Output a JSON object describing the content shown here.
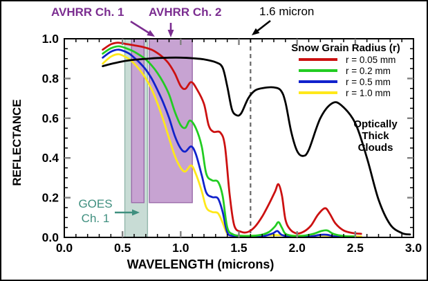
{
  "colors": {
    "red": "#CC1111",
    "green": "#22CC22",
    "blue": "#1122CC",
    "yellow": "#FFE81A",
    "cloud": "#000000",
    "purple_text": "#7B2D90",
    "teal_text": "#3F8F7F",
    "purple_band": "#C7A3D2",
    "purple_band_edge": "#9A6BAA",
    "teal_band": "#C8DCD5",
    "teal_band_edge": "#93B7AC",
    "dashed_line": "#666666",
    "major_tick": "#808080",
    "axis": "#000000"
  },
  "annotations": {
    "avhrr1": "AVHRR Ch. 1",
    "avhrr2": "AVHRR Ch. 2",
    "micron16": "1.6 micron",
    "goes_line1": "GOES",
    "goes_line2": "Ch. 1",
    "clouds_line1": "Optically",
    "clouds_line2": "Thick",
    "clouds_line3": "Clouds"
  },
  "legend": {
    "title": "Snow Grain Radius (r)",
    "items": [
      {
        "label": "r = 0.05 mm",
        "color": "red"
      },
      {
        "label": "r = 0.2 mm",
        "color": "green"
      },
      {
        "label": "r = 0.5 mm",
        "color": "blue"
      },
      {
        "label": "r = 1.0 mm",
        "color": "yellow"
      }
    ]
  },
  "axes": {
    "x_title": "WAVELENGTH (microns)",
    "y_title": "REFLECTANCE"
  },
  "chart_data": {
    "type": "line",
    "title": "",
    "xlabel": "WAVELENGTH (microns)",
    "ylabel": "REFLECTANCE",
    "xlim": [
      0.0,
      3.0
    ],
    "ylim": [
      0.0,
      1.0
    ],
    "x_ticks": {
      "major": [
        0.0,
        0.5,
        1.0,
        1.5,
        2.0,
        2.5,
        3.0
      ],
      "labels": [
        "0.0",
        "0.5",
        "1.0",
        "1.5",
        "2.0",
        "2.5",
        "3.0"
      ],
      "minor_step": 0.1
    },
    "y_ticks": {
      "major": [
        0.0,
        0.2,
        0.4,
        0.6,
        0.8,
        1.0
      ],
      "labels": [
        "0.0",
        "0.2",
        "0.4",
        "0.6",
        "0.8",
        "1.0"
      ],
      "minor_step": 0.05
    },
    "reference_line": {
      "x": 1.6,
      "label": "1.6 micron"
    },
    "bands": [
      {
        "name": "GOES Ch. 1",
        "x": [
          0.52,
          0.715
        ],
        "y": [
          0.0,
          1.0
        ],
        "fill": "teal_band",
        "edge": "teal_band_edge"
      },
      {
        "name": "AVHRR Ch. 1",
        "x": [
          0.578,
          0.685
        ],
        "y": [
          0.175,
          1.0
        ],
        "fill": "purple_band",
        "edge": "purple_band_edge"
      },
      {
        "name": "AVHRR Ch. 2",
        "x": [
          0.73,
          1.1
        ],
        "y": [
          0.175,
          1.0
        ],
        "fill": "purple_band",
        "edge": "purple_band_edge"
      }
    ],
    "series": [
      {
        "name": "r = 1.0 mm",
        "color": "yellow",
        "points": [
          [
            0.33,
            0.875
          ],
          [
            0.4,
            0.91
          ],
          [
            0.47,
            0.922
          ],
          [
            0.55,
            0.9
          ],
          [
            0.6,
            0.875
          ],
          [
            0.65,
            0.842
          ],
          [
            0.7,
            0.8
          ],
          [
            0.75,
            0.746
          ],
          [
            0.8,
            0.675
          ],
          [
            0.85,
            0.592
          ],
          [
            0.9,
            0.5
          ],
          [
            0.95,
            0.41
          ],
          [
            1.0,
            0.35
          ],
          [
            1.04,
            0.332
          ],
          [
            1.09,
            0.362
          ],
          [
            1.13,
            0.32
          ],
          [
            1.18,
            0.235
          ],
          [
            1.22,
            0.15
          ],
          [
            1.27,
            0.128
          ],
          [
            1.32,
            0.122
          ],
          [
            1.36,
            0.075
          ],
          [
            1.4,
            0.018
          ],
          [
            1.45,
            0.01
          ],
          [
            1.6,
            0.008
          ],
          [
            1.8,
            0.012
          ],
          [
            2.0,
            0.008
          ],
          [
            2.2,
            0.01
          ],
          [
            2.4,
            0.006
          ],
          [
            2.55,
            0.005
          ]
        ]
      },
      {
        "name": "r = 0.5 mm",
        "color": "blue",
        "points": [
          [
            0.33,
            0.905
          ],
          [
            0.4,
            0.935
          ],
          [
            0.47,
            0.945
          ],
          [
            0.55,
            0.928
          ],
          [
            0.6,
            0.905
          ],
          [
            0.65,
            0.878
          ],
          [
            0.7,
            0.845
          ],
          [
            0.75,
            0.8
          ],
          [
            0.8,
            0.742
          ],
          [
            0.85,
            0.678
          ],
          [
            0.9,
            0.602
          ],
          [
            0.95,
            0.51
          ],
          [
            1.0,
            0.448
          ],
          [
            1.04,
            0.432
          ],
          [
            1.09,
            0.458
          ],
          [
            1.13,
            0.42
          ],
          [
            1.18,
            0.315
          ],
          [
            1.22,
            0.225
          ],
          [
            1.27,
            0.203
          ],
          [
            1.32,
            0.196
          ],
          [
            1.36,
            0.13
          ],
          [
            1.4,
            0.025
          ],
          [
            1.45,
            0.008
          ],
          [
            1.55,
            0.005
          ],
          [
            1.7,
            0.006
          ],
          [
            1.79,
            0.02
          ],
          [
            1.83,
            0.032
          ],
          [
            1.87,
            0.012
          ],
          [
            1.95,
            0.004
          ],
          [
            2.1,
            0.004
          ],
          [
            2.2,
            0.013
          ],
          [
            2.26,
            0.013
          ],
          [
            2.34,
            0.004
          ],
          [
            2.5,
            0.003
          ]
        ]
      },
      {
        "name": "r = 0.2 mm",
        "color": "green",
        "points": [
          [
            0.33,
            0.925
          ],
          [
            0.4,
            0.952
          ],
          [
            0.47,
            0.962
          ],
          [
            0.55,
            0.948
          ],
          [
            0.6,
            0.935
          ],
          [
            0.65,
            0.917
          ],
          [
            0.7,
            0.896
          ],
          [
            0.75,
            0.866
          ],
          [
            0.8,
            0.828
          ],
          [
            0.85,
            0.78
          ],
          [
            0.9,
            0.72
          ],
          [
            0.95,
            0.632
          ],
          [
            1.0,
            0.565
          ],
          [
            1.04,
            0.552
          ],
          [
            1.08,
            0.588
          ],
          [
            1.13,
            0.55
          ],
          [
            1.18,
            0.46
          ],
          [
            1.22,
            0.32
          ],
          [
            1.27,
            0.287
          ],
          [
            1.32,
            0.28
          ],
          [
            1.36,
            0.21
          ],
          [
            1.4,
            0.05
          ],
          [
            1.45,
            0.015
          ],
          [
            1.52,
            0.008
          ],
          [
            1.62,
            0.008
          ],
          [
            1.7,
            0.014
          ],
          [
            1.76,
            0.028
          ],
          [
            1.81,
            0.055
          ],
          [
            1.84,
            0.077
          ],
          [
            1.87,
            0.048
          ],
          [
            1.9,
            0.018
          ],
          [
            1.96,
            0.008
          ],
          [
            2.05,
            0.008
          ],
          [
            2.14,
            0.018
          ],
          [
            2.21,
            0.032
          ],
          [
            2.26,
            0.035
          ],
          [
            2.31,
            0.018
          ],
          [
            2.4,
            0.007
          ],
          [
            2.5,
            0.005
          ]
        ]
      },
      {
        "name": "r = 0.05 mm",
        "color": "red",
        "points": [
          [
            0.33,
            0.945
          ],
          [
            0.4,
            0.972
          ],
          [
            0.46,
            0.98
          ],
          [
            0.52,
            0.975
          ],
          [
            0.6,
            0.967
          ],
          [
            0.68,
            0.958
          ],
          [
            0.75,
            0.945
          ],
          [
            0.8,
            0.928
          ],
          [
            0.85,
            0.905
          ],
          [
            0.9,
            0.873
          ],
          [
            0.95,
            0.825
          ],
          [
            1.0,
            0.762
          ],
          [
            1.04,
            0.748
          ],
          [
            1.09,
            0.782
          ],
          [
            1.14,
            0.745
          ],
          [
            1.2,
            0.672
          ],
          [
            1.24,
            0.565
          ],
          [
            1.28,
            0.532
          ],
          [
            1.34,
            0.528
          ],
          [
            1.38,
            0.46
          ],
          [
            1.42,
            0.22
          ],
          [
            1.46,
            0.06
          ],
          [
            1.52,
            0.028
          ],
          [
            1.58,
            0.028
          ],
          [
            1.64,
            0.055
          ],
          [
            1.7,
            0.105
          ],
          [
            1.76,
            0.17
          ],
          [
            1.81,
            0.23
          ],
          [
            1.84,
            0.268
          ],
          [
            1.87,
            0.21
          ],
          [
            1.9,
            0.09
          ],
          [
            1.94,
            0.04
          ],
          [
            2.0,
            0.02
          ],
          [
            2.06,
            0.03
          ],
          [
            2.12,
            0.06
          ],
          [
            2.18,
            0.115
          ],
          [
            2.24,
            0.147
          ],
          [
            2.28,
            0.12
          ],
          [
            2.33,
            0.07
          ],
          [
            2.4,
            0.035
          ],
          [
            2.48,
            0.022
          ],
          [
            2.55,
            0.018
          ]
        ]
      },
      {
        "name": "Optically Thick Clouds",
        "color": "cloud",
        "points": [
          [
            0.33,
            0.862
          ],
          [
            0.4,
            0.873
          ],
          [
            0.5,
            0.886
          ],
          [
            0.6,
            0.894
          ],
          [
            0.7,
            0.899
          ],
          [
            0.8,
            0.903
          ],
          [
            0.9,
            0.905
          ],
          [
            1.0,
            0.905
          ],
          [
            1.1,
            0.902
          ],
          [
            1.2,
            0.896
          ],
          [
            1.3,
            0.882
          ],
          [
            1.36,
            0.855
          ],
          [
            1.4,
            0.76
          ],
          [
            1.44,
            0.645
          ],
          [
            1.48,
            0.615
          ],
          [
            1.52,
            0.625
          ],
          [
            1.58,
            0.7
          ],
          [
            1.64,
            0.74
          ],
          [
            1.72,
            0.753
          ],
          [
            1.8,
            0.755
          ],
          [
            1.86,
            0.74
          ],
          [
            1.9,
            0.68
          ],
          [
            1.95,
            0.53
          ],
          [
            2.0,
            0.435
          ],
          [
            2.05,
            0.41
          ],
          [
            2.1,
            0.44
          ],
          [
            2.2,
            0.6
          ],
          [
            2.3,
            0.675
          ],
          [
            2.38,
            0.665
          ],
          [
            2.5,
            0.575
          ],
          [
            2.6,
            0.4
          ],
          [
            2.7,
            0.19
          ],
          [
            2.8,
            0.065
          ],
          [
            2.9,
            0.022
          ],
          [
            2.97,
            0.015
          ]
        ]
      }
    ],
    "legend_position": "upper right",
    "grid": false
  }
}
